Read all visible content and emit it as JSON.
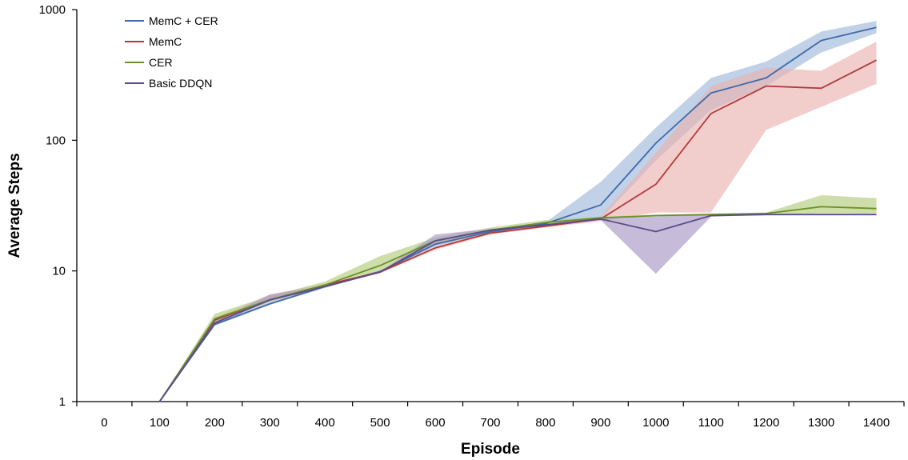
{
  "chart_data": {
    "type": "line",
    "title": "",
    "xlabel": "Episode",
    "ylabel": "Average Steps",
    "x": [
      0,
      100,
      200,
      300,
      400,
      500,
      600,
      700,
      800,
      900,
      1000,
      1100,
      1200,
      1300,
      1400
    ],
    "x_tick_labels": [
      "0",
      "100",
      "200",
      "300",
      "400",
      "500",
      "600",
      "700",
      "800",
      "900",
      "1000",
      "1100",
      "1200",
      "1300",
      "1400"
    ],
    "y_scale": "log",
    "ylim": [
      1,
      1000
    ],
    "y_tick_values": [
      1,
      10,
      100,
      1000
    ],
    "y_tick_labels": [
      "1",
      "10",
      "100",
      "1000"
    ],
    "grid": false,
    "legend_position": "top-left",
    "series": [
      {
        "name": "MemC + CER",
        "color": "#3f6aa8",
        "band_color": "#9fb9dc",
        "values": [
          null,
          1,
          3.9,
          5.6,
          7.6,
          9.9,
          16,
          20,
          23,
          32,
          95,
          230,
          300,
          580,
          730
        ],
        "band_lower": [
          null,
          1,
          3.8,
          5.5,
          7.4,
          9.7,
          15.5,
          19.5,
          22.5,
          25,
          70,
          170,
          260,
          470,
          660
        ],
        "band_upper": [
          null,
          1,
          4.0,
          5.8,
          7.8,
          10.1,
          16.5,
          20.5,
          23.5,
          48,
          125,
          300,
          400,
          680,
          820
        ]
      },
      {
        "name": "MemC",
        "color": "#b03a3a",
        "band_color": "#eab2b0",
        "values": [
          null,
          1,
          4.2,
          6.0,
          7.8,
          9.8,
          15,
          19.5,
          22,
          25,
          46,
          160,
          260,
          250,
          410
        ],
        "band_lower": [
          null,
          1,
          4.0,
          5.8,
          7.6,
          9.6,
          14.5,
          19,
          21.5,
          24,
          28,
          28,
          120,
          180,
          270
        ],
        "band_upper": [
          null,
          1,
          4.4,
          6.6,
          8.0,
          10.0,
          15.5,
          20.5,
          22.5,
          26,
          80,
          260,
          360,
          340,
          570
        ]
      },
      {
        "name": "CER",
        "color": "#6b8f2a",
        "band_color": "#b3cd7e",
        "values": [
          null,
          1,
          4.3,
          6.0,
          7.8,
          11,
          17,
          20.5,
          23.5,
          25.5,
          26.5,
          27,
          27.5,
          31,
          30
        ],
        "band_lower": [
          null,
          1,
          4.0,
          5.8,
          7.5,
          9.8,
          16,
          20,
          23,
          25,
          26,
          26.5,
          27,
          27.5,
          27.5
        ],
        "band_upper": [
          null,
          1,
          4.7,
          6.4,
          8.3,
          13,
          18,
          21.5,
          24.5,
          26,
          27,
          27.5,
          28,
          38,
          36
        ]
      },
      {
        "name": "Basic DDQN",
        "color": "#5b4a8a",
        "band_color": "#a798c5",
        "values": [
          null,
          1,
          4.0,
          6.0,
          7.6,
          9.8,
          17,
          20.5,
          22.5,
          25,
          20,
          26.5,
          27,
          27,
          27
        ],
        "band_lower": [
          null,
          1,
          3.9,
          5.9,
          7.5,
          9.7,
          16,
          20,
          22,
          24.5,
          9.5,
          26,
          26.8,
          26.8,
          26.8
        ],
        "band_upper": [
          null,
          1,
          4.1,
          6.6,
          7.7,
          9.9,
          19,
          21,
          23,
          25.5,
          26,
          27,
          27.2,
          27.2,
          27.2
        ]
      }
    ]
  }
}
